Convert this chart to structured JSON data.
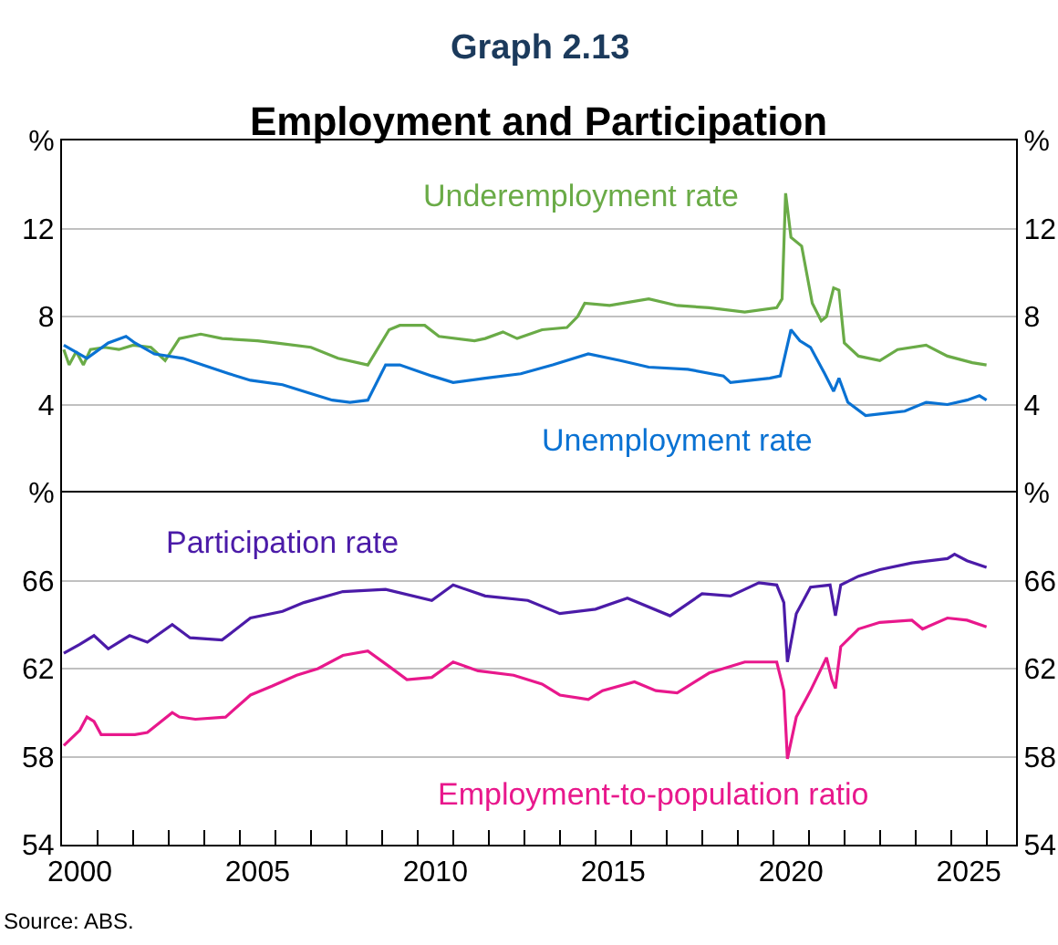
{
  "chart_data": [
    {
      "type": "line",
      "title": "Graph 2.13",
      "subtitle": "Employment and Participation",
      "xlim": [
        2000,
        2026.83
      ],
      "ylim": [
        0,
        16
      ],
      "yticks": [
        4,
        8,
        12,
        {
          "value": 16,
          "label": "%"
        }
      ],
      "y2lim": [
        0,
        16
      ],
      "y2ticks": [
        4,
        8,
        12,
        {
          "value": 16,
          "label": "%"
        }
      ],
      "tick_labels": "y",
      "grid": "y",
      "legend": false,
      "series": [
        {
          "name": "Underemployment rate",
          "color": "#6aab47",
          "x": [
            2000.05,
            2000.2,
            2000.4,
            2000.6,
            2000.8,
            2001.2,
            2001.6,
            2002.0,
            2002.5,
            2002.9,
            2003.3,
            2003.9,
            2004.5,
            2005.5,
            2006.0,
            2007.0,
            2007.76,
            2008.6,
            2009.2,
            2009.5,
            2010.2,
            2010.6,
            2011.6,
            2011.9,
            2012.4,
            2012.8,
            2013.5,
            2014.2,
            2014.5,
            2014.7,
            2015.4,
            2016.5,
            2017.3,
            2018.2,
            2019.2,
            2020.1,
            2020.25,
            2020.35,
            2020.5,
            2020.8,
            2021.1,
            2021.35,
            2021.5,
            2021.7,
            2021.85,
            2022.0,
            2022.4,
            2023.0,
            2023.5,
            2024.3,
            2024.9,
            2025.6,
            2026.0
          ],
          "values": [
            6.5,
            5.8,
            6.4,
            5.8,
            6.5,
            6.6,
            6.5,
            6.7,
            6.6,
            6.0,
            7.0,
            7.2,
            7.0,
            6.9,
            6.8,
            6.6,
            6.1,
            5.8,
            7.4,
            7.6,
            7.6,
            7.1,
            6.9,
            7.0,
            7.3,
            7.0,
            7.4,
            7.5,
            8.0,
            8.6,
            8.5,
            8.8,
            8.5,
            8.4,
            8.2,
            8.4,
            8.8,
            13.6,
            11.6,
            11.2,
            8.6,
            7.8,
            8.0,
            9.3,
            9.2,
            6.8,
            6.2,
            6.0,
            6.5,
            6.7,
            6.2,
            5.9,
            5.8
          ]
        },
        {
          "name": "Unemployment rate",
          "color": "#0a72d3",
          "x": [
            2000.05,
            2000.7,
            2001.3,
            2001.8,
            2002.05,
            2002.6,
            2003.4,
            2003.95,
            2004.7,
            2005.3,
            2006.2,
            2007.0,
            2007.6,
            2008.1,
            2008.6,
            2009.1,
            2009.5,
            2010.4,
            2011.0,
            2011.9,
            2012.9,
            2013.8,
            2014.8,
            2015.7,
            2016.5,
            2017.6,
            2018.6,
            2018.8,
            2019.9,
            2020.2,
            2020.5,
            2020.75,
            2021.05,
            2021.45,
            2021.7,
            2021.85,
            2022.1,
            2022.6,
            2023.15,
            2023.7,
            2024.3,
            2024.9,
            2025.45,
            2025.8,
            2026.0
          ],
          "values": [
            6.7,
            6.1,
            6.8,
            7.1,
            6.8,
            6.3,
            6.1,
            5.8,
            5.4,
            5.1,
            4.9,
            4.5,
            4.2,
            4.1,
            4.2,
            5.8,
            5.8,
            5.3,
            5.0,
            5.2,
            5.4,
            5.8,
            6.3,
            6.0,
            5.7,
            5.6,
            5.3,
            5.0,
            5.2,
            5.3,
            7.4,
            6.9,
            6.6,
            5.4,
            4.6,
            5.2,
            4.1,
            3.5,
            3.6,
            3.7,
            4.1,
            4.0,
            4.2,
            4.4,
            4.2
          ]
        }
      ]
    },
    {
      "type": "line",
      "xlim": [
        2000,
        2026.83
      ],
      "xticks": [
        {
          "value": 2000.5,
          "label": "2000"
        },
        {
          "value": 2005.5,
          "label": "2005"
        },
        {
          "value": 2010.5,
          "label": "2010"
        },
        {
          "value": 2015.5,
          "label": "2015"
        },
        {
          "value": 2020.5,
          "label": "2020"
        },
        {
          "value": 2025.5,
          "label": "2025"
        },
        {
          "value": 2001,
          "label": null
        },
        {
          "value": 2002,
          "label": null
        },
        {
          "value": 2003,
          "label": null
        },
        {
          "value": 2004,
          "label": null
        },
        {
          "value": 2005,
          "label": null
        },
        {
          "value": 2006,
          "label": null
        },
        {
          "value": 2007,
          "label": null
        },
        {
          "value": 2008,
          "label": null
        },
        {
          "value": 2009,
          "label": null
        },
        {
          "value": 2010,
          "label": null
        },
        {
          "value": 2011,
          "label": null
        },
        {
          "value": 2012,
          "label": null
        },
        {
          "value": 2013,
          "label": null
        },
        {
          "value": 2014,
          "label": null
        },
        {
          "value": 2015,
          "label": null
        },
        {
          "value": 2016,
          "label": null
        },
        {
          "value": 2017,
          "label": null
        },
        {
          "value": 2018,
          "label": null
        },
        {
          "value": 2019,
          "label": null
        },
        {
          "value": 2020,
          "label": null
        },
        {
          "value": 2021,
          "label": null
        },
        {
          "value": 2022,
          "label": null
        },
        {
          "value": 2023,
          "label": null
        },
        {
          "value": 2024,
          "label": null
        },
        {
          "value": 2025,
          "label": null
        },
        {
          "value": 2026,
          "label": null
        }
      ],
      "ylim": [
        54,
        70
      ],
      "yticks": [
        54,
        58,
        62,
        66,
        {
          "value": 70,
          "label": "%"
        }
      ],
      "y2lim": [
        54,
        70
      ],
      "y2ticks": [
        54,
        58,
        62,
        66,
        {
          "value": 70,
          "label": "%"
        }
      ],
      "grid": "y",
      "legend": false,
      "annotations": [
        "Source: ABS."
      ],
      "series": [
        {
          "name": "Participation rate",
          "color": "#4b1ba8",
          "x": [
            2000.05,
            2000.5,
            2000.9,
            2001.3,
            2001.9,
            2002.4,
            2003.1,
            2003.6,
            2004.5,
            2005.3,
            2006.2,
            2006.8,
            2007.9,
            2009.1,
            2010.4,
            2011.0,
            2011.9,
            2013.1,
            2014.0,
            2015.0,
            2015.9,
            2017.1,
            2018.0,
            2018.8,
            2019.6,
            2020.1,
            2020.3,
            2020.4,
            2020.65,
            2021.05,
            2021.6,
            2021.75,
            2021.9,
            2022.4,
            2023.0,
            2023.9,
            2024.9,
            2025.1,
            2025.45,
            2026.0
          ],
          "values": [
            62.7,
            63.1,
            63.5,
            62.9,
            63.5,
            63.2,
            64.0,
            63.4,
            63.3,
            64.3,
            64.6,
            65.0,
            65.5,
            65.6,
            65.1,
            65.8,
            65.3,
            65.1,
            64.5,
            64.7,
            65.2,
            64.4,
            65.4,
            65.3,
            65.9,
            65.8,
            65.0,
            62.3,
            64.5,
            65.7,
            65.8,
            64.4,
            65.8,
            66.2,
            66.5,
            66.8,
            67.0,
            67.2,
            66.9,
            66.6
          ]
        },
        {
          "name": "Employment-to-population ratio",
          "color": "#e8188c",
          "x": [
            2000.05,
            2000.5,
            2000.7,
            2000.9,
            2001.1,
            2002.05,
            2002.4,
            2003.1,
            2003.3,
            2003.75,
            2004.6,
            2005.3,
            2005.9,
            2006.6,
            2007.2,
            2007.9,
            2008.6,
            2009.2,
            2009.7,
            2010.4,
            2011.0,
            2011.7,
            2012.7,
            2013.5,
            2014.0,
            2014.8,
            2015.2,
            2016.1,
            2016.7,
            2017.3,
            2018.2,
            2019.2,
            2020.1,
            2020.3,
            2020.4,
            2020.65,
            2021.05,
            2021.5,
            2021.65,
            2021.75,
            2021.9,
            2022.4,
            2023.0,
            2023.9,
            2024.2,
            2024.9,
            2025.45,
            2026.0
          ],
          "values": [
            58.5,
            59.2,
            59.8,
            59.6,
            59.0,
            59.0,
            59.1,
            60.0,
            59.8,
            59.7,
            59.8,
            60.8,
            61.2,
            61.7,
            62.0,
            62.6,
            62.8,
            62.1,
            61.5,
            61.6,
            62.3,
            61.9,
            61.7,
            61.3,
            60.8,
            60.6,
            61.0,
            61.4,
            61.0,
            60.9,
            61.8,
            62.3,
            62.3,
            61.0,
            57.9,
            59.8,
            61.0,
            62.5,
            61.5,
            61.1,
            63.0,
            63.8,
            64.1,
            64.2,
            63.8,
            64.3,
            64.2,
            63.9
          ]
        }
      ]
    }
  ]
}
